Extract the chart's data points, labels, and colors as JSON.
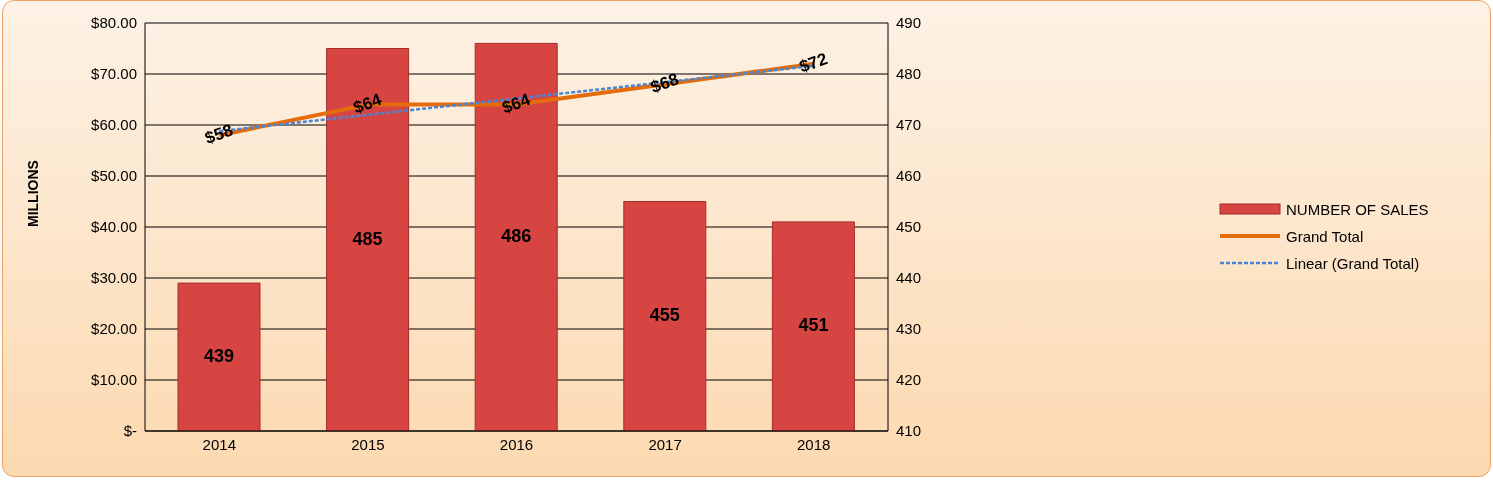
{
  "chart_data": {
    "type": "bar",
    "ylabel": "MILLIONS",
    "categories": [
      "2014",
      "2015",
      "2016",
      "2017",
      "2018"
    ],
    "series": [
      {
        "name": "NUMBER OF SALES",
        "axis": "y2",
        "color": "#d64541",
        "values": [
          439,
          485,
          486,
          455,
          451
        ],
        "value_labels": [
          "439",
          "485",
          "486",
          "455",
          "451"
        ]
      },
      {
        "name": "Grand Total",
        "type": "line",
        "color": "#e46c0a",
        "values": [
          58,
          64,
          64,
          68,
          72
        ],
        "value_labels": [
          "$58",
          "$64",
          "$64",
          "$68",
          "$72"
        ]
      },
      {
        "name": "Linear (Grand Total)",
        "type": "line",
        "line_style": "dashed",
        "color": "#4a86d4",
        "values": [
          58.8,
          62.0,
          65.2,
          68.4,
          71.6
        ]
      }
    ],
    "ylim": [
      0,
      80
    ],
    "yticks": [
      {
        "value": 0,
        "label": "$-"
      },
      {
        "value": 10,
        "label": "$10.00"
      },
      {
        "value": 20,
        "label": "$20.00"
      },
      {
        "value": 30,
        "label": "$30.00"
      },
      {
        "value": 40,
        "label": "$40.00"
      },
      {
        "value": 50,
        "label": "$50.00"
      },
      {
        "value": 60,
        "label": "$60.00"
      },
      {
        "value": 70,
        "label": "$70.00"
      },
      {
        "value": 80,
        "label": "$80.00"
      }
    ],
    "y2lim": [
      410,
      490
    ],
    "y2ticks": [
      410,
      420,
      430,
      440,
      450,
      460,
      470,
      480,
      490
    ],
    "grid": "y",
    "legend": "right"
  }
}
